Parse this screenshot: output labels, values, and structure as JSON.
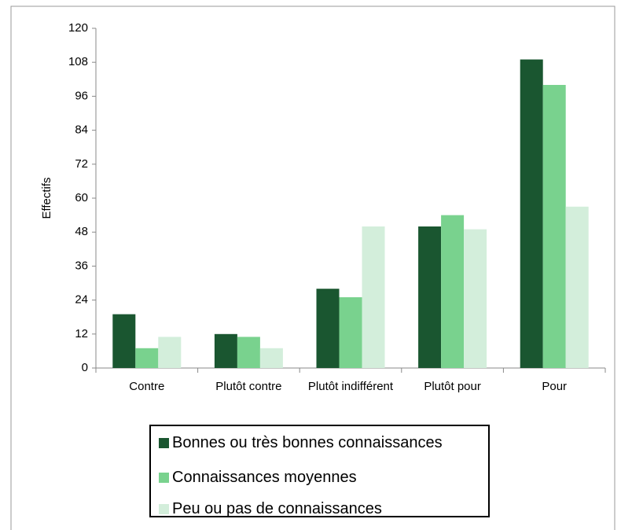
{
  "chart_data": {
    "type": "bar",
    "y_label": "Effectifs",
    "categories": [
      "Contre",
      "Plutôt contre",
      "Plutôt indifférent",
      "Plutôt pour",
      "Pour"
    ],
    "series": [
      {
        "name": "Bonnes ou très bonnes connaissances",
        "color": "#1a5630",
        "values": [
          19,
          12,
          28,
          50,
          109
        ]
      },
      {
        "name": "Connaissances moyennes",
        "color": "#79d28e",
        "values": [
          7,
          11,
          25,
          54,
          100
        ]
      },
      {
        "name": "Peu ou pas de connaissances",
        "color": "#d3eedb",
        "values": [
          11,
          7,
          50,
          49,
          57
        ]
      }
    ],
    "ylim": [
      0,
      120
    ],
    "yticks": [
      0,
      12,
      24,
      36,
      48,
      60,
      72,
      84,
      96,
      108,
      120
    ],
    "grid": false,
    "legend": "bottom"
  }
}
